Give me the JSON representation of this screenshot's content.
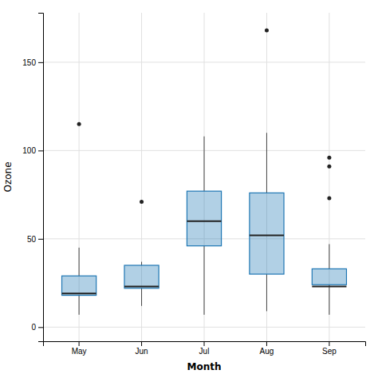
{
  "chart_data": {
    "type": "box",
    "categories": [
      "May",
      "Jun",
      "Jul",
      "Aug",
      "Sep"
    ],
    "boxes": [
      {
        "q1": 18,
        "median": 19,
        "q3": 29,
        "whisker_low": 7,
        "whisker_high": 45,
        "outliers": [
          115
        ]
      },
      {
        "q1": 22,
        "median": 23,
        "q3": 35,
        "whisker_low": 12,
        "whisker_high": 37,
        "outliers": [
          71
        ]
      },
      {
        "q1": 46,
        "median": 60,
        "q3": 77,
        "whisker_low": 7,
        "whisker_high": 108,
        "outliers": []
      },
      {
        "q1": 30,
        "median": 52,
        "q3": 76,
        "whisker_low": 9,
        "whisker_high": 110,
        "outliers": [
          168
        ]
      },
      {
        "q1": 24,
        "median": 23,
        "q3": 33,
        "whisker_low": 7,
        "whisker_high": 47,
        "outliers": [
          96,
          91,
          73
        ]
      }
    ],
    "xlabel": "Month",
    "ylabel": "Ozone",
    "ylim": [
      -8,
      178
    ],
    "yticks": [
      0,
      50,
      100,
      150
    ],
    "grid": true
  }
}
